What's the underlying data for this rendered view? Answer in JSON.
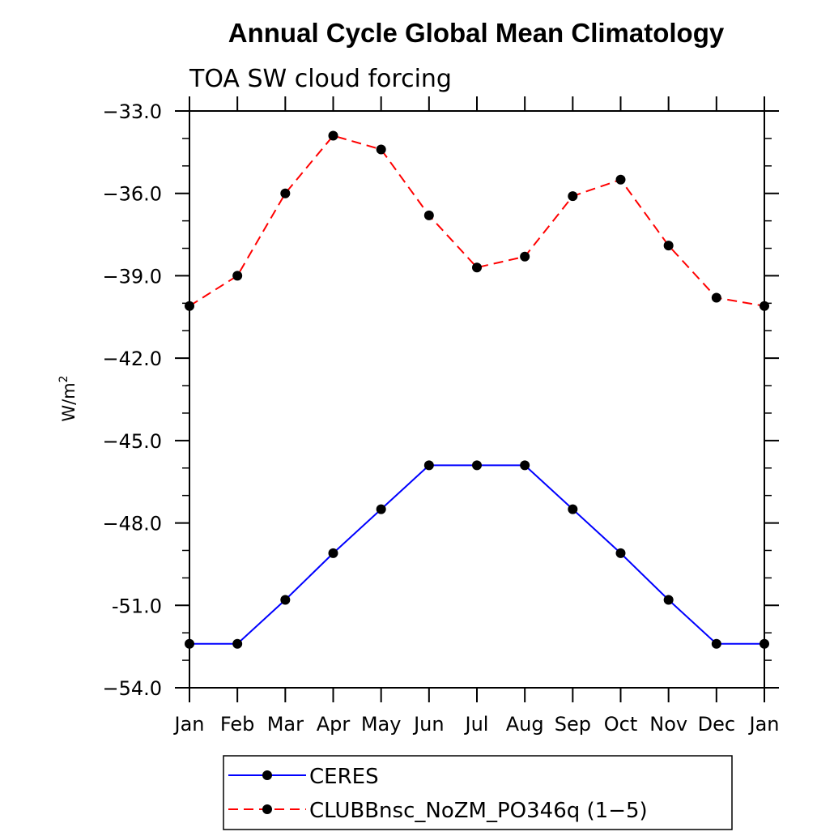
{
  "chart_data": {
    "type": "line",
    "title": "Annual Cycle Global Mean Climatology",
    "subtitle": "TOA SW cloud forcing",
    "ylabel": "W/m",
    "ylabel_superscript": "2",
    "xlabel": "",
    "categories": [
      "Jan",
      "Feb",
      "Mar",
      "Apr",
      "May",
      "Jun",
      "Jul",
      "Aug",
      "Sep",
      "Oct",
      "Nov",
      "Dec",
      "Jan"
    ],
    "ylim": [
      -54.0,
      -33.0
    ],
    "yticks": [
      -33.0,
      -36.0,
      -39.0,
      -42.0,
      -45.0,
      -48.0,
      -51.0,
      -54.0
    ],
    "ytick_labels": [
      "−33.0",
      "−36.0",
      "−39.0",
      "−42.0",
      "−45.0",
      "−48.0",
      "-51.0",
      "−54.0"
    ],
    "series": [
      {
        "name": "CERES",
        "color": "#0000ff",
        "style": "solid",
        "values": [
          -52.4,
          -52.4,
          -50.8,
          -49.1,
          -47.5,
          -45.9,
          -45.9,
          -45.9,
          -47.5,
          -49.1,
          -50.8,
          -52.4,
          -52.4
        ]
      },
      {
        "name": "CLUBBnsc_NoZM_PO346q (1−5)",
        "color": "#ff0000",
        "style": "dashed",
        "values": [
          -40.1,
          -39.0,
          -36.0,
          -33.9,
          -34.4,
          -36.8,
          -38.7,
          -38.3,
          -36.1,
          -35.5,
          -37.9,
          -39.8,
          -40.1
        ]
      }
    ],
    "legend_position": "bottom-center",
    "grid": false
  }
}
